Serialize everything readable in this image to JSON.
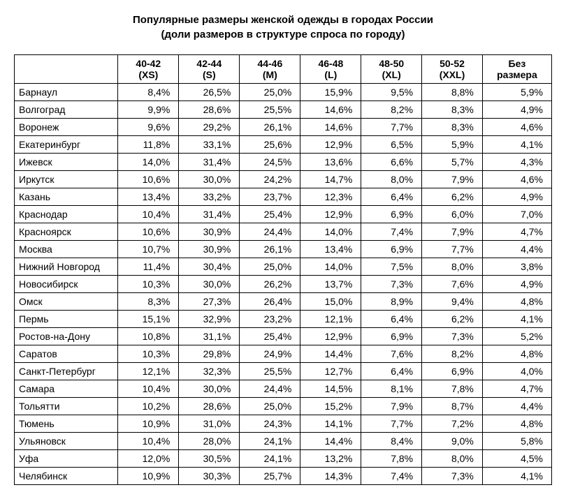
{
  "title": "Популярные размеры женской одежды в городах России",
  "subtitle": "(доли размеров в структуре спроса по городу)",
  "columns": [
    {
      "line1": "40-42",
      "line2": "(XS)"
    },
    {
      "line1": "42-44",
      "line2": "(S)"
    },
    {
      "line1": "44-46",
      "line2": "(M)"
    },
    {
      "line1": "46-48",
      "line2": "(L)"
    },
    {
      "line1": "48-50",
      "line2": "(XL)"
    },
    {
      "line1": "50-52",
      "line2": "(XXL)"
    },
    {
      "line1": "Без",
      "line2": "размера"
    }
  ],
  "rows": [
    {
      "city": "Барнаул",
      "values": [
        "8,4%",
        "26,5%",
        "25,0%",
        "15,9%",
        "9,5%",
        "8,8%",
        "5,9%"
      ]
    },
    {
      "city": "Волгоград",
      "values": [
        "9,9%",
        "28,6%",
        "25,5%",
        "14,6%",
        "8,2%",
        "8,3%",
        "4,9%"
      ]
    },
    {
      "city": "Воронеж",
      "values": [
        "9,6%",
        "29,2%",
        "26,1%",
        "14,6%",
        "7,7%",
        "8,3%",
        "4,6%"
      ]
    },
    {
      "city": "Екатеринбург",
      "values": [
        "11,8%",
        "33,1%",
        "25,6%",
        "12,9%",
        "6,5%",
        "5,9%",
        "4,1%"
      ]
    },
    {
      "city": "Ижевск",
      "values": [
        "14,0%",
        "31,4%",
        "24,5%",
        "13,6%",
        "6,6%",
        "5,7%",
        "4,3%"
      ]
    },
    {
      "city": "Иркутск",
      "values": [
        "10,6%",
        "30,0%",
        "24,2%",
        "14,7%",
        "8,0%",
        "7,9%",
        "4,6%"
      ]
    },
    {
      "city": "Казань",
      "values": [
        "13,4%",
        "33,2%",
        "23,7%",
        "12,3%",
        "6,4%",
        "6,2%",
        "4,9%"
      ]
    },
    {
      "city": "Краснодар",
      "values": [
        "10,4%",
        "31,4%",
        "25,4%",
        "12,9%",
        "6,9%",
        "6,0%",
        "7,0%"
      ]
    },
    {
      "city": "Красноярск",
      "values": [
        "10,6%",
        "30,9%",
        "24,4%",
        "14,0%",
        "7,4%",
        "7,9%",
        "4,7%"
      ]
    },
    {
      "city": "Москва",
      "values": [
        "10,7%",
        "30,9%",
        "26,1%",
        "13,4%",
        "6,9%",
        "7,7%",
        "4,4%"
      ]
    },
    {
      "city": "Нижний Новгород",
      "values": [
        "11,4%",
        "30,4%",
        "25,0%",
        "14,0%",
        "7,5%",
        "8,0%",
        "3,8%"
      ]
    },
    {
      "city": "Новосибирск",
      "values": [
        "10,3%",
        "30,0%",
        "26,2%",
        "13,7%",
        "7,3%",
        "7,6%",
        "4,9%"
      ]
    },
    {
      "city": "Омск",
      "values": [
        "8,3%",
        "27,3%",
        "26,4%",
        "15,0%",
        "8,9%",
        "9,4%",
        "4,8%"
      ]
    },
    {
      "city": "Пермь",
      "values": [
        "15,1%",
        "32,9%",
        "23,2%",
        "12,1%",
        "6,4%",
        "6,2%",
        "4,1%"
      ]
    },
    {
      "city": "Ростов-на-Дону",
      "values": [
        "10,8%",
        "31,1%",
        "25,4%",
        "12,9%",
        "6,9%",
        "7,3%",
        "5,2%"
      ]
    },
    {
      "city": "Саратов",
      "values": [
        "10,3%",
        "29,8%",
        "24,9%",
        "14,4%",
        "7,6%",
        "8,2%",
        "4,8%"
      ]
    },
    {
      "city": "Санкт-Петербург",
      "values": [
        "12,1%",
        "32,3%",
        "25,5%",
        "12,7%",
        "6,4%",
        "6,9%",
        "4,0%"
      ]
    },
    {
      "city": "Самара",
      "values": [
        "10,4%",
        "30,0%",
        "24,4%",
        "14,5%",
        "8,1%",
        "7,8%",
        "4,7%"
      ]
    },
    {
      "city": "Тольятти",
      "values": [
        "10,2%",
        "28,6%",
        "25,0%",
        "15,2%",
        "7,9%",
        "8,7%",
        "4,4%"
      ]
    },
    {
      "city": "Тюмень",
      "values": [
        "10,9%",
        "31,0%",
        "24,3%",
        "14,1%",
        "7,7%",
        "7,2%",
        "4,8%"
      ]
    },
    {
      "city": "Ульяновск",
      "values": [
        "10,4%",
        "28,0%",
        "24,1%",
        "14,4%",
        "8,4%",
        "9,0%",
        "5,8%"
      ]
    },
    {
      "city": "Уфа",
      "values": [
        "12,0%",
        "30,5%",
        "24,1%",
        "13,2%",
        "7,8%",
        "8,0%",
        "4,5%"
      ]
    },
    {
      "city": "Челябинск",
      "values": [
        "10,9%",
        "30,3%",
        "25,7%",
        "14,3%",
        "7,4%",
        "7,3%",
        "4,1%"
      ]
    }
  ],
  "style": {
    "background_color": "#ffffff",
    "text_color": "#000000",
    "border_color": "#000000",
    "font_family": "Arial",
    "title_fontsize": 15,
    "cell_fontsize": 14
  }
}
